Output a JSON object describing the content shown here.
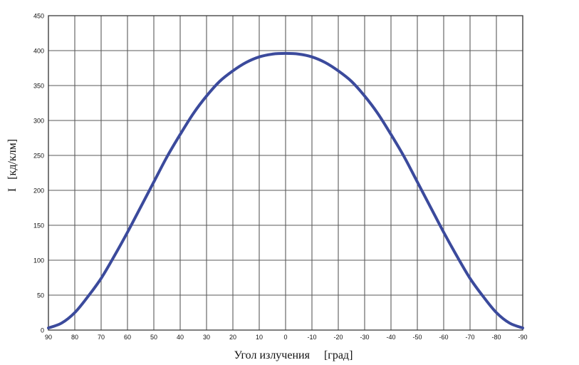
{
  "chart_data": {
    "type": "line",
    "xlabel": "Угол излучения     [град]",
    "ylabel": "I   [кд/клм]",
    "xlim": [
      90,
      -90
    ],
    "ylim": [
      0,
      450
    ],
    "x_ticks": [
      90,
      80,
      70,
      60,
      50,
      40,
      30,
      20,
      10,
      0,
      -10,
      -20,
      -30,
      -40,
      -50,
      -60,
      -70,
      -80,
      -90
    ],
    "y_ticks": [
      0,
      50,
      100,
      150,
      200,
      250,
      300,
      350,
      400,
      450
    ],
    "grid": true,
    "line_color": "#3b4a9c",
    "series": [
      {
        "x": [
          90,
          85,
          80,
          75,
          70,
          65,
          60,
          55,
          50,
          45,
          40,
          35,
          30,
          25,
          20,
          15,
          10,
          5,
          0,
          -5,
          -10,
          -15,
          -20,
          -25,
          -30,
          -35,
          -40,
          -45,
          -50,
          -55,
          -60,
          -65,
          -70,
          -75,
          -80,
          -85,
          -90
        ],
        "values": [
          3,
          10,
          25,
          48,
          74,
          106,
          140,
          176,
          212,
          248,
          280,
          310,
          335,
          356,
          371,
          383,
          391,
          395,
          396,
          395,
          391,
          383,
          371,
          356,
          335,
          310,
          280,
          248,
          212,
          176,
          140,
          106,
          74,
          48,
          25,
          10,
          3
        ]
      }
    ]
  }
}
